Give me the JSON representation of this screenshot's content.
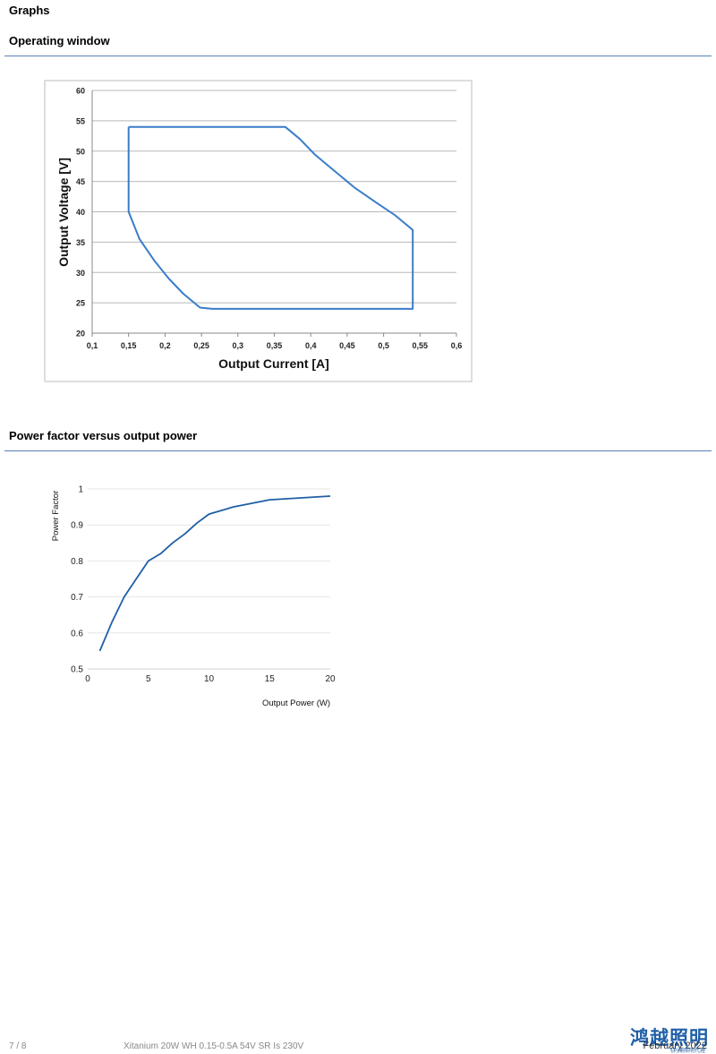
{
  "page": {
    "heading": "Graphs"
  },
  "sections": {
    "operating_window": {
      "title": "Operating window"
    },
    "power_factor": {
      "title": "Power factor versus output power"
    }
  },
  "footer": {
    "page_number": "7 / 8",
    "product": "Xitanium 20W WH 0.15-0.5A 54V SR Is 230V",
    "date": "February 2022",
    "logo_text": "鸿越照明",
    "logo_subtext": "飞利浦照明代理"
  },
  "chart_data": [
    {
      "type": "line",
      "xlabel": "Output Current [A]",
      "ylabel": "Output Voltage [V]",
      "xlim": [
        0.1,
        0.6
      ],
      "ylim": [
        20,
        60
      ],
      "xticks": [
        "0,1",
        "0,15",
        "0,2",
        "0,25",
        "0,3",
        "0,35",
        "0,4",
        "0,45",
        "0,5",
        "0,55",
        "0,6"
      ],
      "yticks": [
        "20",
        "25",
        "30",
        "35",
        "40",
        "45",
        "50",
        "55",
        "60"
      ],
      "grid": "horizontal",
      "color": "#3a7dc9",
      "series": [
        {
          "x": [
            0.15,
            0.365,
            0.385,
            0.405,
            0.43,
            0.46,
            0.49,
            0.515,
            0.54,
            0.54,
            0.265,
            0.248,
            0.225,
            0.205,
            0.185,
            0.165,
            0.15,
            0.15
          ],
          "y": [
            54,
            54,
            52,
            49.5,
            47,
            44,
            41.5,
            39.5,
            37,
            24,
            24,
            24.2,
            26.5,
            29,
            32,
            35.5,
            40,
            54
          ]
        }
      ]
    },
    {
      "type": "line",
      "xlabel": "Output Power (W)",
      "ylabel": "Power Factor",
      "xlim": [
        0,
        20
      ],
      "ylim": [
        0.5,
        1
      ],
      "xticks": [
        "0",
        "5",
        "10",
        "15",
        "20"
      ],
      "yticks": [
        "0.5",
        "0.6",
        "0.7",
        "0.8",
        "0.9",
        "1"
      ],
      "grid": "horizontal",
      "color": "#1f5fa6",
      "series": [
        {
          "x": [
            1,
            2,
            3,
            4,
            5,
            6,
            7,
            8,
            9,
            10,
            12,
            15,
            20
          ],
          "y": [
            0.55,
            0.63,
            0.7,
            0.75,
            0.8,
            0.82,
            0.85,
            0.875,
            0.905,
            0.93,
            0.95,
            0.97,
            0.98
          ]
        }
      ]
    }
  ]
}
